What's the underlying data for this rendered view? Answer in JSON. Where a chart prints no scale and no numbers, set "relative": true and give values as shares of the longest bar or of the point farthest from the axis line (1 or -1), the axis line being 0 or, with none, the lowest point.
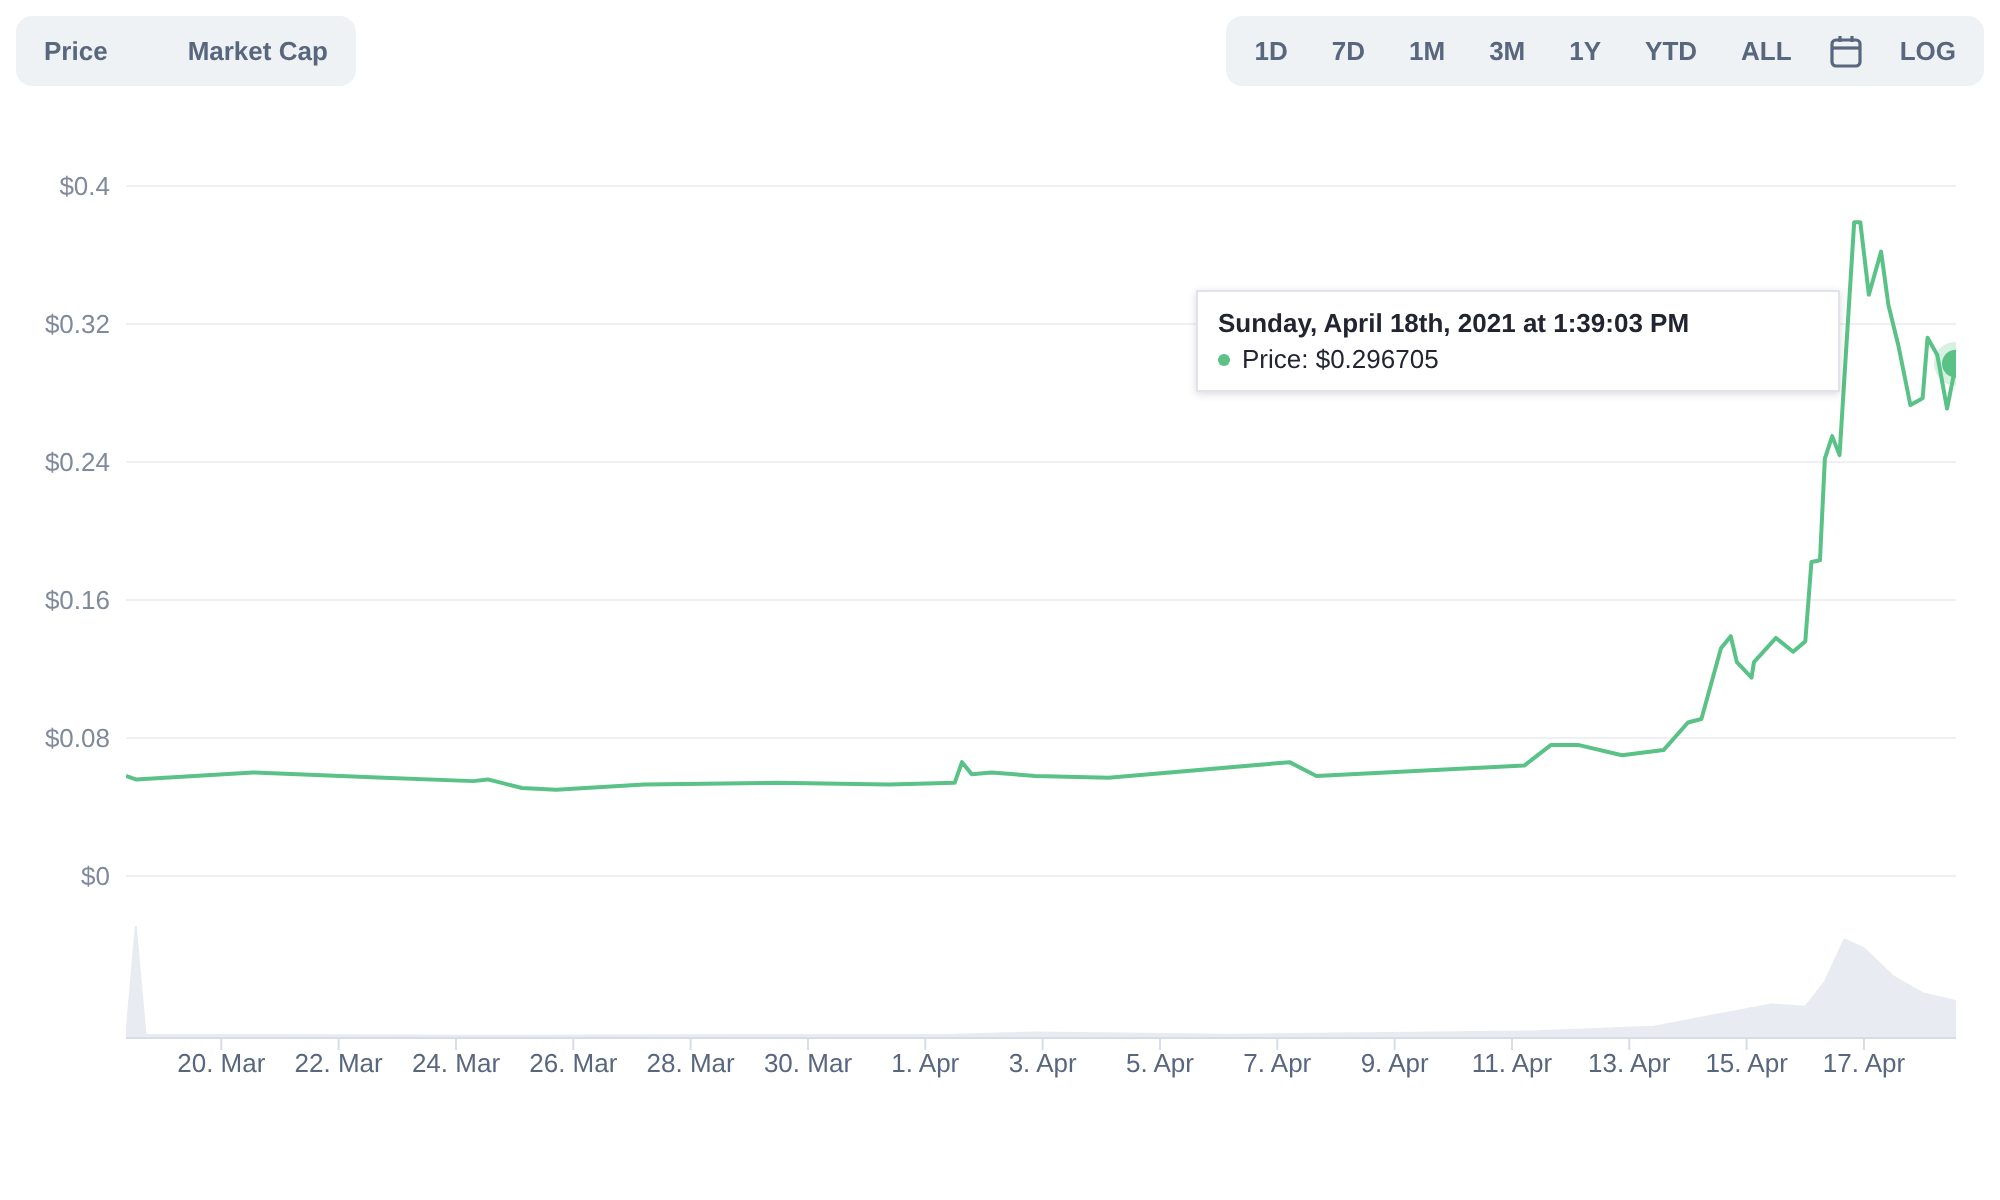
{
  "chart_data": [
    {
      "type": "line",
      "tick_labels": "y",
      "grid": "y",
      "legend": false,
      "marker": "none",
      "annotations": [
        "Price",
        "Market Cap",
        "1D",
        "7D",
        "1M",
        "3M",
        "1Y",
        "YTD",
        "ALL",
        "LOG",
        "Sunday, April 18th, 2021 at 1:39:03 PM",
        "Price: $0.296705"
      ],
      "x": [
        "2021-03-18T09:00",
        "2021-03-18T13:00",
        "2021-03-20T13:00",
        "2021-03-22T18:30",
        "2021-03-24T07:00",
        "2021-03-24T13:00",
        "2021-03-25T03:00",
        "2021-03-25T17:00",
        "2021-03-27T05:00",
        "2021-03-29T11:00",
        "2021-03-31T09:00",
        "2021-04-01T12:00",
        "2021-04-01T15:00",
        "2021-04-01T19:00",
        "2021-04-02T03:00",
        "2021-04-02T21:00",
        "2021-04-04T03:00",
        "2021-04-07T05:00",
        "2021-04-07T16:00",
        "2021-04-11T05:00",
        "2021-04-11T16:00",
        "2021-04-12T03:00",
        "2021-04-12T21:00",
        "2021-04-13T14:00",
        "2021-04-14T00:00",
        "2021-04-14T05:30",
        "2021-04-14T13:30",
        "2021-04-14T17:30",
        "2021-04-14T20:00",
        "2021-04-15T02:00",
        "2021-04-15T03:00",
        "2021-04-15T12:00",
        "2021-04-15T19:00",
        "2021-04-16T00:00",
        "2021-04-16T02:30",
        "2021-04-16T06:00",
        "2021-04-16T08:00",
        "2021-04-16T11:00",
        "2021-04-16T14:00",
        "2021-04-16T20:00",
        "2021-04-16T22:30",
        "2021-04-17T02:00",
        "2021-04-17T07:00",
        "2021-04-17T10:00",
        "2021-04-17T14:00",
        "2021-04-17T19:00",
        "2021-04-18T00:00",
        "2021-04-18T02:00",
        "2021-04-18T06:00",
        "2021-04-18T10:00",
        "2021-04-18T13:39"
      ],
      "series": [
        {
          "color": "#5ac286",
          "values": [
            0.058,
            0.056,
            0.06,
            0.057,
            0.055,
            0.056,
            0.051,
            0.05,
            0.053,
            0.054,
            0.053,
            0.054,
            0.066,
            0.059,
            0.06,
            0.058,
            0.057,
            0.066,
            0.058,
            0.064,
            0.076,
            0.076,
            0.07,
            0.073,
            0.089,
            0.091,
            0.132,
            0.139,
            0.124,
            0.115,
            0.124,
            0.138,
            0.13,
            0.136,
            0.182,
            0.183,
            0.242,
            0.255,
            0.244,
            0.379,
            0.379,
            0.337,
            0.362,
            0.331,
            0.308,
            0.273,
            0.277,
            0.312,
            0.302,
            0.271,
            0.297
          ]
        }
      ],
      "xlim": [
        "2021-03-18T09:00",
        "2021-04-18T13:39"
      ],
      "ylim": [
        0,
        0.4
      ],
      "yticks": [
        {
          "value": 0,
          "label": "$0"
        },
        {
          "value": 0.08,
          "label": "$0.08"
        },
        {
          "value": 0.16,
          "label": "$0.16"
        },
        {
          "value": 0.24,
          "label": "$0.24"
        },
        {
          "value": 0.32,
          "label": "$0.32"
        },
        {
          "value": 0.4,
          "label": "$0.4"
        }
      ]
    },
    {
      "type": "area",
      "relative": true,
      "tick_labels": "x",
      "legend": false,
      "x": [
        "2021-03-18T09:00",
        "2021-03-18T13:00",
        "2021-03-18T17:00",
        "2021-03-24T13:00",
        "2021-04-01T12:00",
        "2021-04-02T21:00",
        "2021-04-06T04:00",
        "2021-04-11T10:00",
        "2021-04-13T10:00",
        "2021-04-14T10:00",
        "2021-04-15T10:00",
        "2021-04-16T00:00",
        "2021-04-16T08:00",
        "2021-04-16T16:00",
        "2021-04-17T00:00",
        "2021-04-17T12:00",
        "2021-04-18T00:00",
        "2021-04-18T13:39"
      ],
      "series": [
        {
          "color": "#e8ebf2",
          "values": [
            0,
            1.0,
            0.03,
            0.02,
            0.03,
            0.05,
            0.03,
            0.06,
            0.1,
            0.2,
            0.3,
            0.28,
            0.5,
            0.88,
            0.8,
            0.55,
            0.4,
            0.33
          ]
        }
      ],
      "xlim": [
        "2021-03-18T09:00",
        "2021-04-18T13:39"
      ],
      "xticks": [
        {
          "value": "2021-03-20",
          "label": "20. Mar"
        },
        {
          "value": "2021-03-22",
          "label": "22. Mar"
        },
        {
          "value": "2021-03-24",
          "label": "24. Mar"
        },
        {
          "value": "2021-03-26",
          "label": "26. Mar"
        },
        {
          "value": "2021-03-28",
          "label": "28. Mar"
        },
        {
          "value": "2021-03-30",
          "label": "30. Mar"
        },
        {
          "value": "2021-04-01",
          "label": "1. Apr"
        },
        {
          "value": "2021-04-03",
          "label": "3. Apr"
        },
        {
          "value": "2021-04-05",
          "label": "5. Apr"
        },
        {
          "value": "2021-04-07",
          "label": "7. Apr"
        },
        {
          "value": "2021-04-09",
          "label": "9. Apr"
        },
        {
          "value": "2021-04-11",
          "label": "11. Apr"
        },
        {
          "value": "2021-04-13",
          "label": "13. Apr"
        },
        {
          "value": "2021-04-15",
          "label": "15. Apr"
        },
        {
          "value": "2021-04-17",
          "label": "17. Apr"
        }
      ]
    }
  ]
}
